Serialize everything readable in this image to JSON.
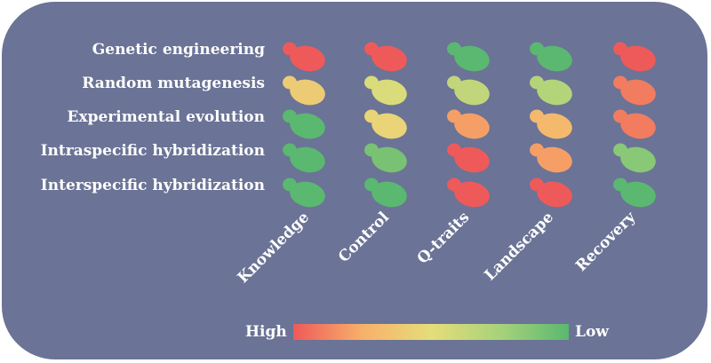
{
  "rows": [
    "Genetic engineering",
    "Random mutagenesis",
    "Experimental evolution",
    "Intraspecific hybridization",
    "Interspecific hybridization"
  ],
  "columns": [
    "Knowledge",
    "Control",
    "Q-traits",
    "Landscape",
    "Recovery"
  ],
  "levels": [
    [
      0.0,
      0.0,
      1.0,
      1.0,
      0.0
    ],
    [
      0.4,
      0.55,
      0.65,
      0.7,
      0.1
    ],
    [
      1.0,
      0.45,
      0.2,
      0.3,
      0.1
    ],
    [
      1.0,
      0.9,
      0.0,
      0.2,
      0.85
    ],
    [
      1.0,
      1.0,
      0.0,
      0.0,
      1.0
    ]
  ],
  "legend": {
    "high_label": "High",
    "low_label": "Low",
    "colors": [
      "#ee5a5a",
      "#f7b06a",
      "#e6dd7a",
      "#a8d27a",
      "#5ab870"
    ]
  }
}
